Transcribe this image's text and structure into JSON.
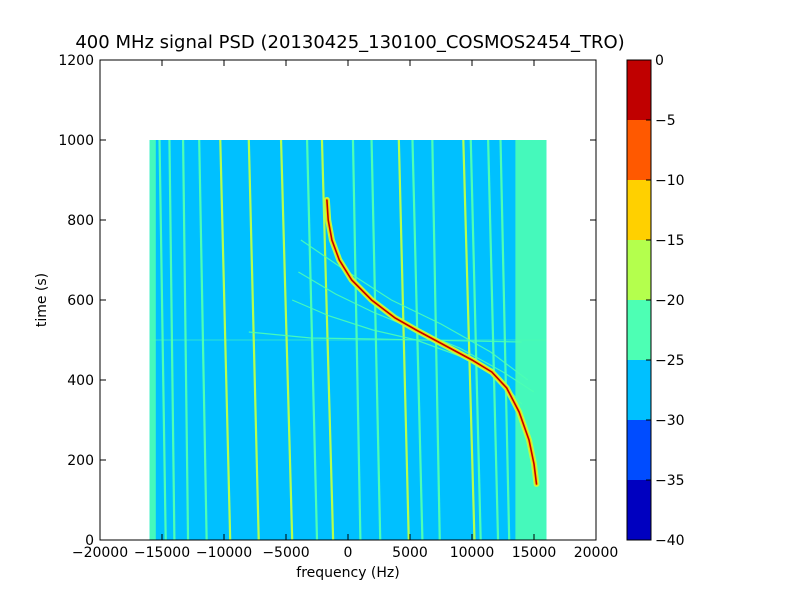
{
  "chart_data": {
    "type": "heatmap",
    "title": "400 MHz signal PSD (20130425_130100_COSMOS2454_TRO)",
    "xlabel": "frequency (Hz)",
    "ylabel": "time (s)",
    "xlim": [
      -20000,
      20000
    ],
    "ylim": [
      0,
      1200
    ],
    "x_ticks": [
      -20000,
      -15000,
      -10000,
      -5000,
      0,
      5000,
      10000,
      15000,
      20000
    ],
    "y_ticks": [
      0,
      200,
      400,
      600,
      800,
      1000,
      1200
    ],
    "x_tick_labels": [
      "−20000",
      "−15000",
      "−10000",
      "−5000",
      "0",
      "5000",
      "10000",
      "15000",
      "20000"
    ],
    "y_tick_labels": [
      "0",
      "200",
      "400",
      "600",
      "800",
      "1000",
      "1200"
    ],
    "data_extent": {
      "x": [
        -16000,
        16000
      ],
      "y": [
        0,
        1000
      ]
    },
    "background_level": -27.5,
    "edge_band_level": -22.5,
    "edge_bands": [
      {
        "x0": -16000,
        "x1": -15500
      },
      {
        "x0": 13500,
        "x1": 16000
      }
    ],
    "vertical_lines": [
      {
        "x_top": -15200,
        "x_bottom": -14700,
        "level": -22.5
      },
      {
        "x_top": -14400,
        "x_bottom": -14000,
        "level": -22.5
      },
      {
        "x_top": -13300,
        "x_bottom": -12900,
        "level": -22.5
      },
      {
        "x_top": -12000,
        "x_bottom": -11400,
        "level": -22.5
      },
      {
        "x_top": -10300,
        "x_bottom": -9500,
        "level": -17.5
      },
      {
        "x_top": -8000,
        "x_bottom": -7200,
        "level": -17.5
      },
      {
        "x_top": -5400,
        "x_bottom": -4500,
        "level": -17.5
      },
      {
        "x_top": -3300,
        "x_bottom": -2500,
        "level": -22.5
      },
      {
        "x_top": -2100,
        "x_bottom": -1200,
        "level": -17.5
      },
      {
        "x_top": 400,
        "x_bottom": 1000,
        "level": -22.5
      },
      {
        "x_top": 1900,
        "x_bottom": 2600,
        "level": -22.5
      },
      {
        "x_top": 4100,
        "x_bottom": 4900,
        "level": -17.5
      },
      {
        "x_top": 5200,
        "x_bottom": 6000,
        "level": -22.5
      },
      {
        "x_top": 6800,
        "x_bottom": 7400,
        "level": -22.5
      },
      {
        "x_top": 9300,
        "x_bottom": 10200,
        "level": -17.5
      },
      {
        "x_top": 9900,
        "x_bottom": 10700,
        "level": -22.5
      },
      {
        "x_top": 11300,
        "x_bottom": 12100,
        "level": -22.5
      },
      {
        "x_top": 12300,
        "x_bottom": 13000,
        "level": -22.5
      }
    ],
    "signal_trace": {
      "level": -2.5,
      "points": [
        [
          -1700,
          850
        ],
        [
          -1600,
          800
        ],
        [
          -1300,
          750
        ],
        [
          -700,
          700
        ],
        [
          300,
          650
        ],
        [
          1900,
          600
        ],
        [
          3800,
          555
        ],
        [
          5500,
          525
        ],
        [
          7000,
          500
        ],
        [
          8500,
          475
        ],
        [
          10000,
          450
        ],
        [
          11600,
          420
        ],
        [
          12800,
          380
        ],
        [
          13800,
          320
        ],
        [
          14600,
          250
        ],
        [
          15000,
          190
        ],
        [
          15200,
          140
        ]
      ]
    },
    "faint_traces": [
      {
        "level": -22.5,
        "points": [
          [
            -4000,
            670
          ],
          [
            -1000,
            615
          ],
          [
            2000,
            570
          ],
          [
            5500,
            525
          ],
          [
            9000,
            480
          ],
          [
            12500,
            420
          ],
          [
            15000,
            370
          ]
        ]
      },
      {
        "level": -22.5,
        "points": [
          [
            -4500,
            600
          ],
          [
            -1500,
            560
          ],
          [
            2000,
            525
          ],
          [
            5500,
            500
          ],
          [
            9000,
            460
          ],
          [
            12000,
            410
          ],
          [
            14000,
            340
          ]
        ]
      },
      {
        "level": -22.5,
        "points": [
          [
            -3800,
            750
          ],
          [
            -500,
            680
          ],
          [
            3500,
            600
          ],
          [
            7500,
            540
          ],
          [
            11500,
            470
          ],
          [
            14500,
            400
          ]
        ]
      },
      {
        "level": -22.5,
        "points": [
          [
            -8000,
            520
          ],
          [
            -3000,
            505
          ],
          [
            3000,
            502
          ],
          [
            9000,
            498
          ],
          [
            14000,
            495
          ]
        ]
      }
    ],
    "horizontal_line": {
      "y": 500,
      "x0": -16000,
      "x1": 16000,
      "level": -22.5
    },
    "colorbar": {
      "min": -40,
      "max": 0,
      "ticks": [
        0,
        -5,
        -10,
        -15,
        -20,
        -25,
        -30,
        -35,
        -40
      ],
      "tick_labels": [
        "0",
        "−5",
        "−10",
        "−15",
        "−20",
        "−25",
        "−30",
        "−35",
        "−40"
      ],
      "bins": [
        {
          "from": -40,
          "to": -35,
          "color": "#0000c0"
        },
        {
          "from": -35,
          "to": -30,
          "color": "#004cff"
        },
        {
          "from": -30,
          "to": -25,
          "color": "#00c0ff"
        },
        {
          "from": -25,
          "to": -20,
          "color": "#4dffb4"
        },
        {
          "from": -20,
          "to": -15,
          "color": "#b4ff4d"
        },
        {
          "from": -15,
          "to": -10,
          "color": "#ffd000"
        },
        {
          "from": -10,
          "to": -5,
          "color": "#ff5900"
        },
        {
          "from": -5,
          "to": 0,
          "color": "#c00000"
        }
      ]
    }
  }
}
